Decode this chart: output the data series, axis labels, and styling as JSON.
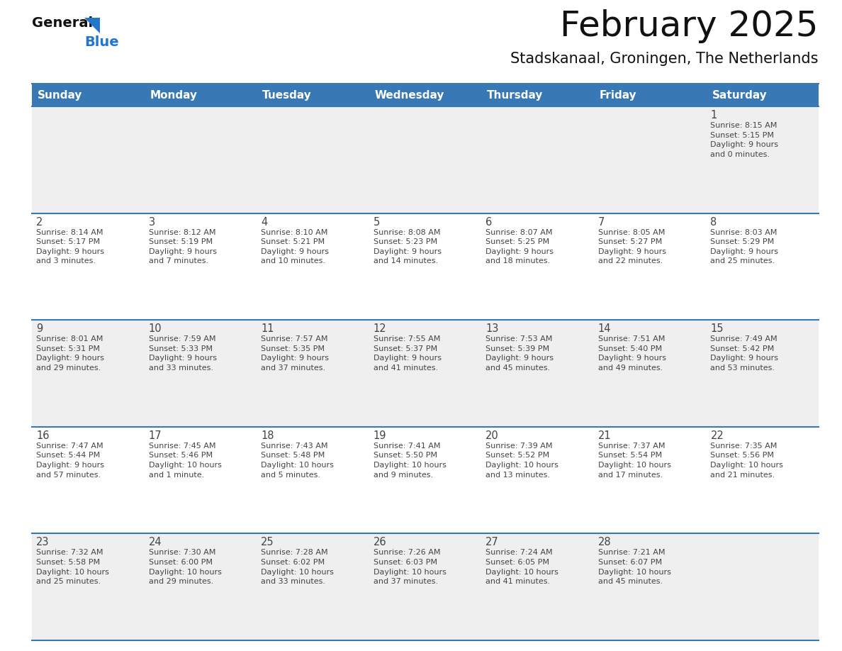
{
  "title": "February 2025",
  "subtitle": "Stadskanaal, Groningen, The Netherlands",
  "days_of_week": [
    "Sunday",
    "Monday",
    "Tuesday",
    "Wednesday",
    "Thursday",
    "Friday",
    "Saturday"
  ],
  "header_bg_color": "#3778b5",
  "header_text_color": "#ffffff",
  "cell_bg_color": "#ffffff",
  "row1_bg_color": "#efefef",
  "border_color": "#3778b5",
  "text_color": "#444444",
  "title_color": "#111111",
  "subtitle_color": "#111111",
  "logo_general_color": "#111111",
  "logo_blue_color": "#2277cc",
  "weeks": [
    [
      {
        "day": "",
        "info": ""
      },
      {
        "day": "",
        "info": ""
      },
      {
        "day": "",
        "info": ""
      },
      {
        "day": "",
        "info": ""
      },
      {
        "day": "",
        "info": ""
      },
      {
        "day": "",
        "info": ""
      },
      {
        "day": "1",
        "info": "Sunrise: 8:15 AM\nSunset: 5:15 PM\nDaylight: 9 hours\nand 0 minutes."
      }
    ],
    [
      {
        "day": "2",
        "info": "Sunrise: 8:14 AM\nSunset: 5:17 PM\nDaylight: 9 hours\nand 3 minutes."
      },
      {
        "day": "3",
        "info": "Sunrise: 8:12 AM\nSunset: 5:19 PM\nDaylight: 9 hours\nand 7 minutes."
      },
      {
        "day": "4",
        "info": "Sunrise: 8:10 AM\nSunset: 5:21 PM\nDaylight: 9 hours\nand 10 minutes."
      },
      {
        "day": "5",
        "info": "Sunrise: 8:08 AM\nSunset: 5:23 PM\nDaylight: 9 hours\nand 14 minutes."
      },
      {
        "day": "6",
        "info": "Sunrise: 8:07 AM\nSunset: 5:25 PM\nDaylight: 9 hours\nand 18 minutes."
      },
      {
        "day": "7",
        "info": "Sunrise: 8:05 AM\nSunset: 5:27 PM\nDaylight: 9 hours\nand 22 minutes."
      },
      {
        "day": "8",
        "info": "Sunrise: 8:03 AM\nSunset: 5:29 PM\nDaylight: 9 hours\nand 25 minutes."
      }
    ],
    [
      {
        "day": "9",
        "info": "Sunrise: 8:01 AM\nSunset: 5:31 PM\nDaylight: 9 hours\nand 29 minutes."
      },
      {
        "day": "10",
        "info": "Sunrise: 7:59 AM\nSunset: 5:33 PM\nDaylight: 9 hours\nand 33 minutes."
      },
      {
        "day": "11",
        "info": "Sunrise: 7:57 AM\nSunset: 5:35 PM\nDaylight: 9 hours\nand 37 minutes."
      },
      {
        "day": "12",
        "info": "Sunrise: 7:55 AM\nSunset: 5:37 PM\nDaylight: 9 hours\nand 41 minutes."
      },
      {
        "day": "13",
        "info": "Sunrise: 7:53 AM\nSunset: 5:39 PM\nDaylight: 9 hours\nand 45 minutes."
      },
      {
        "day": "14",
        "info": "Sunrise: 7:51 AM\nSunset: 5:40 PM\nDaylight: 9 hours\nand 49 minutes."
      },
      {
        "day": "15",
        "info": "Sunrise: 7:49 AM\nSunset: 5:42 PM\nDaylight: 9 hours\nand 53 minutes."
      }
    ],
    [
      {
        "day": "16",
        "info": "Sunrise: 7:47 AM\nSunset: 5:44 PM\nDaylight: 9 hours\nand 57 minutes."
      },
      {
        "day": "17",
        "info": "Sunrise: 7:45 AM\nSunset: 5:46 PM\nDaylight: 10 hours\nand 1 minute."
      },
      {
        "day": "18",
        "info": "Sunrise: 7:43 AM\nSunset: 5:48 PM\nDaylight: 10 hours\nand 5 minutes."
      },
      {
        "day": "19",
        "info": "Sunrise: 7:41 AM\nSunset: 5:50 PM\nDaylight: 10 hours\nand 9 minutes."
      },
      {
        "day": "20",
        "info": "Sunrise: 7:39 AM\nSunset: 5:52 PM\nDaylight: 10 hours\nand 13 minutes."
      },
      {
        "day": "21",
        "info": "Sunrise: 7:37 AM\nSunset: 5:54 PM\nDaylight: 10 hours\nand 17 minutes."
      },
      {
        "day": "22",
        "info": "Sunrise: 7:35 AM\nSunset: 5:56 PM\nDaylight: 10 hours\nand 21 minutes."
      }
    ],
    [
      {
        "day": "23",
        "info": "Sunrise: 7:32 AM\nSunset: 5:58 PM\nDaylight: 10 hours\nand 25 minutes."
      },
      {
        "day": "24",
        "info": "Sunrise: 7:30 AM\nSunset: 6:00 PM\nDaylight: 10 hours\nand 29 minutes."
      },
      {
        "day": "25",
        "info": "Sunrise: 7:28 AM\nSunset: 6:02 PM\nDaylight: 10 hours\nand 33 minutes."
      },
      {
        "day": "26",
        "info": "Sunrise: 7:26 AM\nSunset: 6:03 PM\nDaylight: 10 hours\nand 37 minutes."
      },
      {
        "day": "27",
        "info": "Sunrise: 7:24 AM\nSunset: 6:05 PM\nDaylight: 10 hours\nand 41 minutes."
      },
      {
        "day": "28",
        "info": "Sunrise: 7:21 AM\nSunset: 6:07 PM\nDaylight: 10 hours\nand 45 minutes."
      },
      {
        "day": "",
        "info": ""
      }
    ]
  ]
}
